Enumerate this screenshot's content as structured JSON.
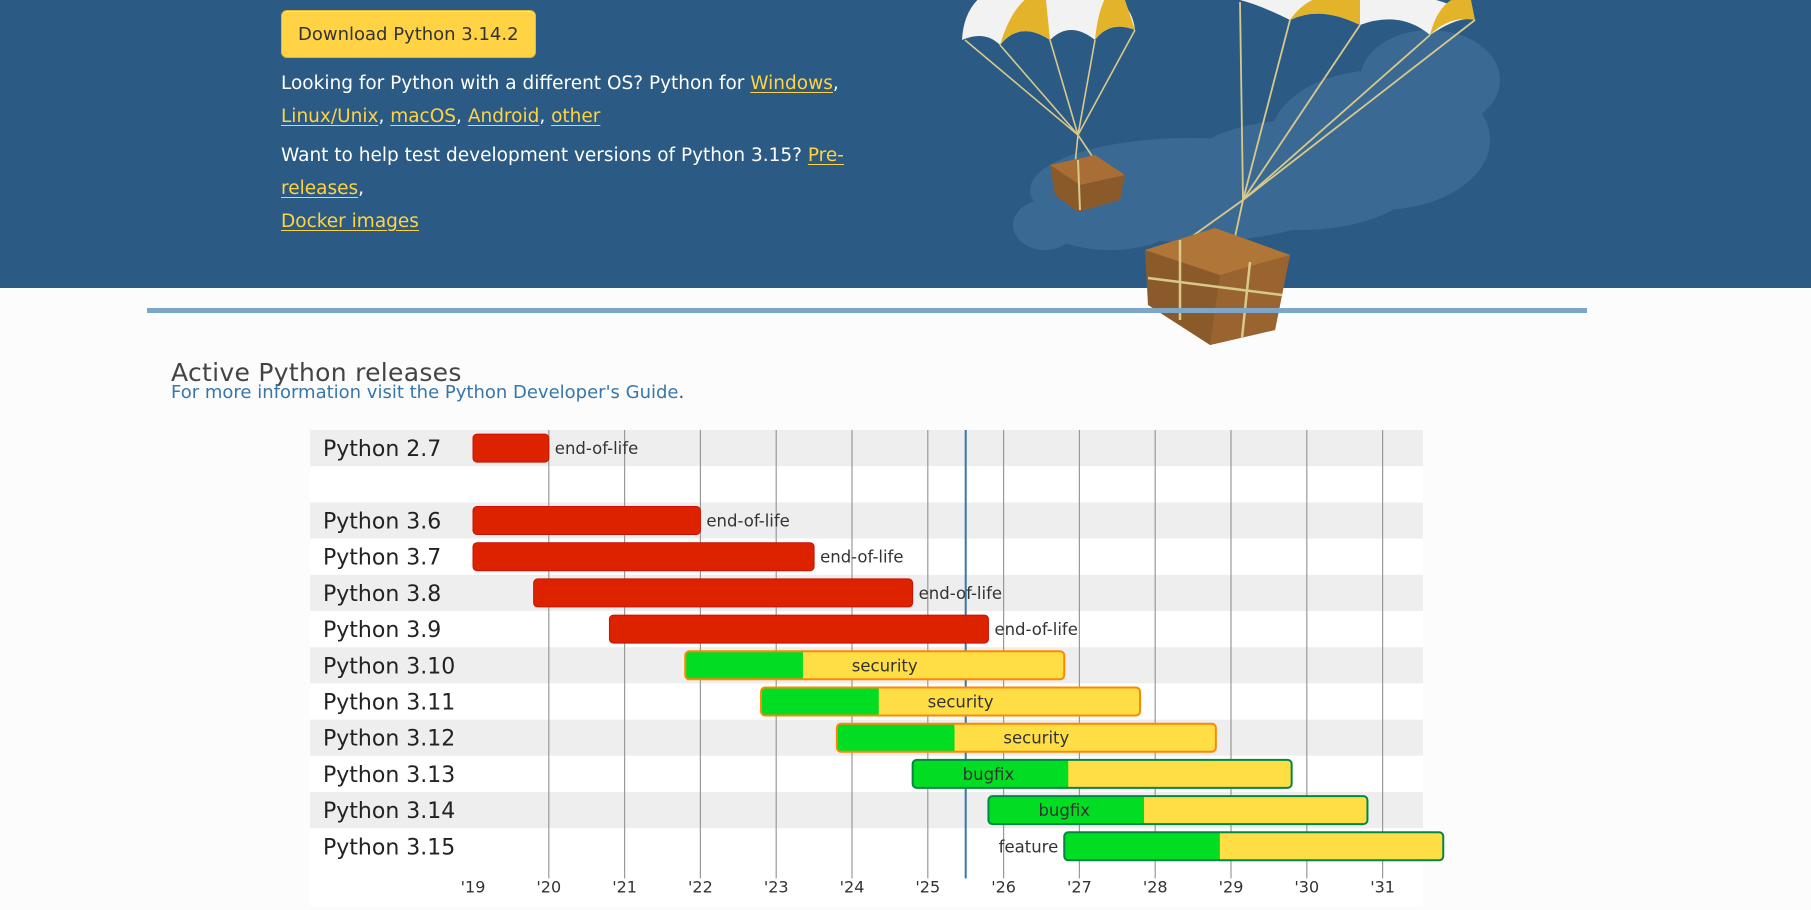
{
  "hero": {
    "download_label": "Download Python 3.14.2",
    "os_prefix": "Looking for Python with a different OS? Python for ",
    "os_links": [
      "Windows",
      "Linux/Unix",
      "macOS",
      "Android",
      "other"
    ],
    "dev_prefix": "Want to help test development versions of Python 3.15? ",
    "dev_links": [
      "Pre-releases",
      "Docker images"
    ]
  },
  "section": {
    "title": "Active Python releases",
    "guide_link": "For more information visit the Python Developer's Guide",
    "guide_suffix": "."
  },
  "colors": {
    "hero_bg": "#2b5b84",
    "link_yellow": "#ffd343",
    "eol_red": "#dd2200",
    "bugfix_green": "#00dd22",
    "security_yellow": "#ffdd44",
    "security_border": "#ff8800",
    "bugfix_border": "#008844",
    "today_line": "#3776ab"
  },
  "chart_data": {
    "type": "gantt",
    "x_ticks": [
      "'19",
      "'20",
      "'21",
      "'22",
      "'23",
      "'24",
      "'25",
      "'26",
      "'27",
      "'28",
      "'29",
      "'30",
      "'31"
    ],
    "x_range": [
      2019,
      2032
    ],
    "today": 2025.5,
    "releases": [
      {
        "label": "Python 2.7",
        "row": 0,
        "start": 2019.0,
        "bugfix_end": 2020.0,
        "end": 2020.0,
        "status": "end-of-life"
      },
      {
        "label": "Python 3.6",
        "row": 2,
        "start": 2019.0,
        "bugfix_end": 2022.0,
        "end": 2022.0,
        "status": "end-of-life"
      },
      {
        "label": "Python 3.7",
        "row": 3,
        "start": 2019.0,
        "bugfix_end": 2023.5,
        "end": 2023.5,
        "status": "end-of-life"
      },
      {
        "label": "Python 3.8",
        "row": 4,
        "start": 2019.8,
        "bugfix_end": 2024.8,
        "end": 2024.8,
        "status": "end-of-life"
      },
      {
        "label": "Python 3.9",
        "row": 5,
        "start": 2020.8,
        "bugfix_end": 2025.8,
        "end": 2025.8,
        "status": "end-of-life"
      },
      {
        "label": "Python 3.10",
        "row": 6,
        "start": 2021.8,
        "bugfix_end": 2023.3,
        "end": 2026.8,
        "status": "security"
      },
      {
        "label": "Python 3.11",
        "row": 7,
        "start": 2022.8,
        "bugfix_end": 2024.3,
        "end": 2027.8,
        "status": "security"
      },
      {
        "label": "Python 3.12",
        "row": 8,
        "start": 2023.8,
        "bugfix_end": 2025.3,
        "end": 2028.8,
        "status": "security"
      },
      {
        "label": "Python 3.13",
        "row": 9,
        "start": 2024.8,
        "bugfix_end": 2026.8,
        "end": 2029.8,
        "status": "bugfix"
      },
      {
        "label": "Python 3.14",
        "row": 10,
        "start": 2025.8,
        "bugfix_end": 2027.8,
        "end": 2030.8,
        "status": "bugfix"
      },
      {
        "label": "Python 3.15",
        "row": 11,
        "start": 2026.8,
        "bugfix_end": 2028.8,
        "end": 2031.8,
        "status": "feature"
      }
    ]
  }
}
